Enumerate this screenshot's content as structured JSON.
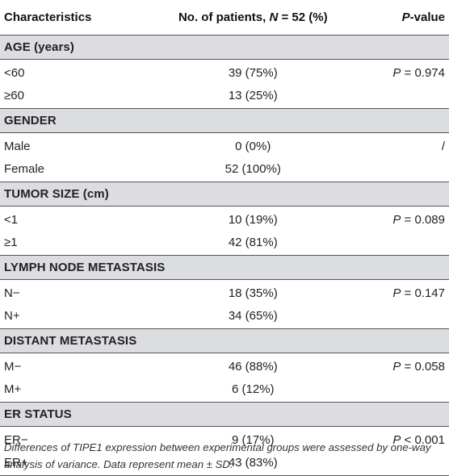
{
  "header": {
    "characteristics": "Characteristics",
    "patients_prefix": "No. of patients, ",
    "patients_N": "N",
    "patients_suffix": " = 52 (%)",
    "pvalue_italic": "P",
    "pvalue_suffix": "-value"
  },
  "groups": [
    {
      "title": "AGE (years)",
      "rows": [
        {
          "label": "<60",
          "count": "39 (75%)",
          "p_sym": "P",
          "p_rest": " = 0.974"
        },
        {
          "label": "≥60",
          "count": "13 (25%)",
          "p_sym": "",
          "p_rest": ""
        }
      ]
    },
    {
      "title": "GENDER",
      "rows": [
        {
          "label": "Male",
          "count": "0 (0%)",
          "p_sym": "",
          "p_rest": "/"
        },
        {
          "label": "Female",
          "count": "52 (100%)",
          "p_sym": "",
          "p_rest": ""
        }
      ]
    },
    {
      "title": "TUMOR SIZE (cm)",
      "rows": [
        {
          "label": "<1",
          "count": "10 (19%)",
          "p_sym": "P",
          "p_rest": " = 0.089"
        },
        {
          "label": "≥1",
          "count": "42 (81%)",
          "p_sym": "",
          "p_rest": ""
        }
      ]
    },
    {
      "title": "LYMPH NODE METASTASIS",
      "rows": [
        {
          "label": "N−",
          "count": "18 (35%)",
          "p_sym": "P",
          "p_rest": " = 0.147"
        },
        {
          "label": "N+",
          "count": "34 (65%)",
          "p_sym": "",
          "p_rest": ""
        }
      ]
    },
    {
      "title": "DISTANT METASTASIS",
      "rows": [
        {
          "label": "M−",
          "count": "46 (88%)",
          "p_sym": "P",
          "p_rest": " = 0.058"
        },
        {
          "label": "M+",
          "count": "6 (12%)",
          "p_sym": "",
          "p_rest": ""
        }
      ]
    },
    {
      "title": "ER STATUS",
      "rows": [
        {
          "label": "ER−",
          "count": "9 (17%)",
          "p_sym": "P",
          "p_rest": " < 0.001"
        },
        {
          "label": "ER+",
          "count": "43 (83%)",
          "p_sym": "",
          "p_rest": ""
        }
      ]
    }
  ],
  "footnote": "Differences of TIPE1 expression between experimental groups were assessed by one-way analysis of variance. Data represent mean ± SD.",
  "colors": {
    "group_band": "#dcdde1",
    "rule": "#555555"
  }
}
